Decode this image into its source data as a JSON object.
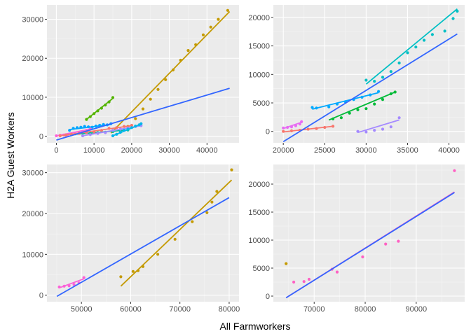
{
  "figure": {
    "xlabel": "All Farmworkers",
    "ylabel": "H2A Guest Workers",
    "panel_bg": "#ebebeb",
    "grid_major": "#ffffff",
    "trend_color": "#3366ff"
  },
  "chart_data": [
    {
      "type": "scatter",
      "panel": "top-left",
      "xlim": [
        -2500,
        48500
      ],
      "ylim": [
        -1700,
        33700
      ],
      "xticks": [
        0,
        10000,
        20000,
        30000,
        40000
      ],
      "yticks": [
        0,
        10000,
        20000,
        30000
      ],
      "grid": true,
      "trend": [
        [
          0,
          -1000
        ],
        [
          46000,
          12300
        ]
      ],
      "series": [
        {
          "color": "#c49a00",
          "points": [
            [
              15000,
              1200
            ],
            [
              17000,
              1500
            ],
            [
              19000,
              2500
            ],
            [
              21000,
              4500
            ],
            [
              23000,
              7000
            ],
            [
              25000,
              9500
            ],
            [
              27000,
              12000
            ],
            [
              29000,
              14500
            ],
            [
              31000,
              17000
            ],
            [
              33000,
              19500
            ],
            [
              35000,
              22000
            ],
            [
              37000,
              23500
            ],
            [
              39000,
              26000
            ],
            [
              41000,
              28000
            ],
            [
              43000,
              30000
            ],
            [
              45500,
              32300
            ]
          ],
          "fit": [
            [
              14500,
              800
            ],
            [
              46000,
              32000
            ]
          ]
        },
        {
          "color": "#53b400",
          "points": [
            [
              8000,
              4300
            ],
            [
              9000,
              5000
            ],
            [
              10000,
              5800
            ],
            [
              11000,
              6500
            ],
            [
              12000,
              7200
            ],
            [
              13000,
              8000
            ],
            [
              14000,
              8800
            ],
            [
              15000,
              9900
            ]
          ],
          "fit": [
            [
              8000,
              4300
            ],
            [
              15000,
              9700
            ]
          ]
        },
        {
          "color": "#00a6ff",
          "points": [
            [
              3500,
              1500
            ],
            [
              4500,
              2000
            ],
            [
              5500,
              2200
            ],
            [
              6500,
              2300
            ],
            [
              7500,
              2500
            ],
            [
              8500,
              2400
            ],
            [
              9500,
              2300
            ],
            [
              10500,
              2600
            ],
            [
              11500,
              2800
            ],
            [
              12500,
              3000
            ],
            [
              13500,
              2900
            ],
            [
              14500,
              3200
            ]
          ],
          "fit": [
            [
              3500,
              1700
            ],
            [
              14500,
              3000
            ]
          ]
        },
        {
          "color": "#00c094",
          "points": [
            [
              5000,
              600
            ],
            [
              7000,
              800
            ],
            [
              9000,
              700
            ],
            [
              11000,
              900
            ],
            [
              13000,
              1000
            ],
            [
              15000,
              1200
            ],
            [
              17000,
              1400
            ],
            [
              19000,
              1600
            ]
          ],
          "fit": [
            [
              5000,
              500
            ],
            [
              19000,
              1600
            ]
          ]
        },
        {
          "color": "#a58aff",
          "points": [
            [
              7000,
              100
            ],
            [
              9000,
              400
            ],
            [
              11000,
              700
            ],
            [
              13000,
              900
            ],
            [
              15000,
              1500
            ],
            [
              17000,
              1800
            ],
            [
              19000,
              2100
            ],
            [
              21000,
              2500
            ],
            [
              22500,
              2700
            ]
          ],
          "fit": [
            [
              7000,
              100
            ],
            [
              22500,
              2700
            ]
          ]
        },
        {
          "color": "#fb61d7",
          "points": [
            [
              0,
              100
            ],
            [
              1000,
              200
            ],
            [
              2000,
              300
            ],
            [
              3000,
              400
            ],
            [
              4000,
              500
            ],
            [
              5000,
              700
            ],
            [
              6000,
              900
            ],
            [
              7000,
              1200
            ],
            [
              8000,
              1500
            ],
            [
              9000,
              1800
            ]
          ],
          "fit": [
            [
              0,
              100
            ],
            [
              9000,
              1800
            ]
          ]
        },
        {
          "color": "#f8766d",
          "points": [
            [
              1000,
              100
            ],
            [
              2500,
              300
            ],
            [
              4000,
              500
            ],
            [
              6000,
              700
            ],
            [
              8000,
              900
            ],
            [
              10000,
              1100
            ],
            [
              12000,
              1500
            ],
            [
              14000,
              2000
            ],
            [
              16000,
              2200
            ],
            [
              18000,
              2500
            ],
            [
              20000,
              2800
            ]
          ],
          "fit": [
            [
              1000,
              100
            ],
            [
              20000,
              2700
            ]
          ]
        },
        {
          "color": "#00b6eb",
          "points": [
            [
              15000,
              100
            ],
            [
              16000,
              500
            ],
            [
              17000,
              1000
            ],
            [
              18000,
              1500
            ],
            [
              19000,
              1800
            ],
            [
              20000,
              2200
            ],
            [
              21000,
              2600
            ],
            [
              22000,
              2900
            ],
            [
              22500,
              3200
            ]
          ],
          "fit": [
            [
              15000,
              100
            ],
            [
              22500,
              3100
            ]
          ]
        }
      ]
    },
    {
      "type": "scatter",
      "panel": "top-right",
      "xlim": [
        18800,
        41900
      ],
      "ylim": [
        -2000,
        22200
      ],
      "xticks": [
        20000,
        25000,
        30000,
        35000,
        40000
      ],
      "yticks": [
        0,
        5000,
        10000,
        15000,
        20000
      ],
      "grid": true,
      "trend": [
        [
          20000,
          -1800
        ],
        [
          41000,
          17100
        ]
      ],
      "series": [
        {
          "color": "#00bfc4",
          "points": [
            [
              30000,
              9000
            ],
            [
              31000,
              8800
            ],
            [
              32000,
              9500
            ],
            [
              33000,
              10500
            ],
            [
              34000,
              12000
            ],
            [
              35000,
              13800
            ],
            [
              36000,
              14800
            ],
            [
              37000,
              16000
            ],
            [
              38000,
              17000
            ],
            [
              39500,
              17600
            ],
            [
              40500,
              19800
            ],
            [
              41000,
              21100
            ]
          ],
          "fit": [
            [
              30000,
              8300
            ],
            [
              41000,
              21500
            ]
          ]
        },
        {
          "color": "#00a9ff",
          "points": [
            [
              23500,
              4200
            ],
            [
              24000,
              4100
            ],
            [
              25500,
              4300
            ],
            [
              26500,
              4800
            ],
            [
              27500,
              5200
            ],
            [
              28500,
              5600
            ],
            [
              29500,
              6000
            ],
            [
              30500,
              6400
            ],
            [
              31500,
              7000
            ]
          ],
          "fit": [
            [
              23500,
              3900
            ],
            [
              31500,
              6800
            ]
          ]
        },
        {
          "color": "#00ba38",
          "points": [
            [
              26000,
              2200
            ],
            [
              27000,
              2400
            ],
            [
              28000,
              3200
            ],
            [
              29000,
              3800
            ],
            [
              30000,
              4000
            ],
            [
              31000,
              4800
            ],
            [
              32000,
              5600
            ],
            [
              33000,
              6600
            ],
            [
              33500,
              6900
            ]
          ],
          "fit": [
            [
              25500,
              2000
            ],
            [
              33500,
              6900
            ]
          ]
        },
        {
          "color": "#a58aff",
          "points": [
            [
              29000,
              0
            ],
            [
              30000,
              -100
            ],
            [
              31000,
              200
            ],
            [
              32000,
              400
            ],
            [
              33000,
              800
            ],
            [
              34000,
              2400
            ]
          ],
          "fit": [
            [
              29000,
              -200
            ],
            [
              34000,
              2000
            ]
          ]
        },
        {
          "color": "#f8766d",
          "points": [
            [
              20000,
              0
            ],
            [
              21000,
              100
            ],
            [
              22000,
              200
            ],
            [
              23000,
              400
            ],
            [
              24000,
              500
            ],
            [
              25000,
              700
            ],
            [
              26000,
              900
            ]
          ],
          "fit": [
            [
              20000,
              -100
            ],
            [
              26000,
              900
            ]
          ]
        },
        {
          "color": "#e76bf3",
          "points": [
            [
              20000,
              600
            ],
            [
              20500,
              700
            ],
            [
              21000,
              800
            ],
            [
              21500,
              1000
            ],
            [
              22000,
              1300
            ],
            [
              22200,
              1700
            ]
          ],
          "fit": [
            [
              20000,
              500
            ],
            [
              22200,
              1600
            ]
          ]
        }
      ]
    },
    {
      "type": "scatter",
      "panel": "bottom-left",
      "xlim": [
        43000,
        82000
      ],
      "ylim": [
        -1600,
        32000
      ],
      "xticks": [
        50000,
        60000,
        70000,
        80000
      ],
      "yticks": [
        0,
        10000,
        20000,
        30000
      ],
      "grid": true,
      "trend": [
        [
          45000,
          -300
        ],
        [
          80000,
          23900
        ]
      ],
      "series": [
        {
          "color": "#c49a00",
          "points": [
            [
              58000,
              4500
            ],
            [
              60500,
              5800
            ],
            [
              61500,
              6000
            ],
            [
              62500,
              7000
            ],
            [
              65500,
              10000
            ],
            [
              69000,
              13700
            ],
            [
              72500,
              18000
            ],
            [
              75500,
              20200
            ],
            [
              76500,
              22800
            ],
            [
              77500,
              25400
            ],
            [
              80500,
              30700
            ]
          ],
          "fit": [
            [
              58000,
              2200
            ],
            [
              80500,
              28200
            ]
          ]
        },
        {
          "color": "#fb61d7",
          "points": [
            [
              45500,
              2000
            ],
            [
              46500,
              2200
            ],
            [
              47500,
              2300
            ],
            [
              48500,
              2600
            ],
            [
              49500,
              3000
            ],
            [
              50500,
              4300
            ]
          ],
          "fit": [
            [
              45500,
              1800
            ],
            [
              50500,
              4000
            ]
          ]
        }
      ]
    },
    {
      "type": "scatter",
      "panel": "bottom-right",
      "xlim": [
        62000,
        99500
      ],
      "ylim": [
        -1000,
        23500
      ],
      "xticks": [
        70000,
        80000,
        90000
      ],
      "yticks": [
        0,
        5000,
        10000,
        15000,
        20000
      ],
      "grid": true,
      "trend": [
        [
          64500,
          -300
        ],
        [
          97500,
          18500
        ]
      ],
      "series": [
        {
          "color": "#ff61c3",
          "points": [
            [
              66000,
              2500
            ],
            [
              68000,
              2600
            ],
            [
              69000,
              3000
            ],
            [
              73500,
              4800
            ],
            [
              74500,
              4300
            ],
            [
              79500,
              7000
            ],
            [
              84000,
              9300
            ],
            [
              86500,
              9800
            ],
            [
              97500,
              22400
            ]
          ],
          "fit": [
            [
              64500,
              -300
            ],
            [
              97500,
              18600
            ]
          ]
        },
        {
          "color": "#c49a00",
          "points": [
            [
              64500,
              5800
            ]
          ]
        }
      ]
    }
  ]
}
